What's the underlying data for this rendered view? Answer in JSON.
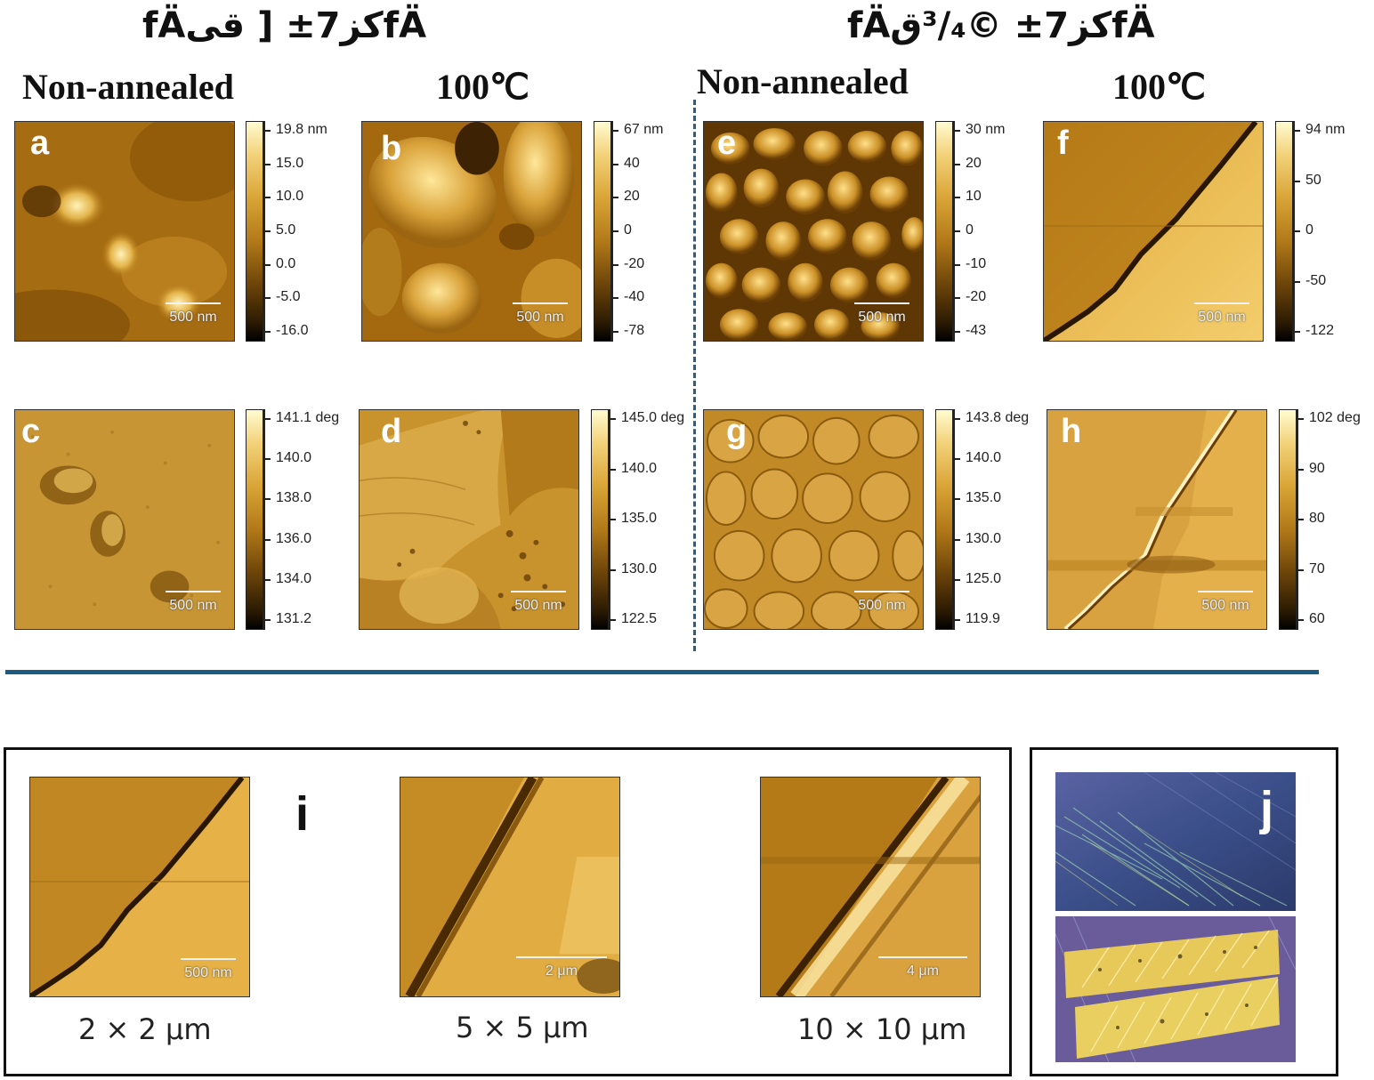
{
  "header": {
    "left_title": "fÄكز7±؜ [ قیfÄ",
    "right_title": "fÄكز7±؜ ©³/₄قfÄ"
  },
  "columns": {
    "col1": "Non-annealed",
    "col2": "100℃",
    "col3": "Non-annealed",
    "col4": "100℃"
  },
  "panels": {
    "a": {
      "label": "a",
      "scale": "500 nm"
    },
    "b": {
      "label": "b",
      "scale": "500 nm"
    },
    "c": {
      "label": "c",
      "scale": "500 nm"
    },
    "d": {
      "label": "d",
      "scale": "500 nm"
    },
    "e": {
      "label": "e",
      "scale": "500 nm"
    },
    "f": {
      "label": "f",
      "scale": "500 nm"
    },
    "g": {
      "label": "g",
      "scale": "500 nm"
    },
    "h": {
      "label": "h",
      "scale": "500 nm"
    },
    "i": {
      "label": "i"
    },
    "j": {
      "label": "j"
    }
  },
  "colorbars": {
    "a": [
      "19.8 nm",
      "15.0",
      "10.0",
      "5.0",
      "0.0",
      "-5.0",
      "-16.0"
    ],
    "b": [
      "67 nm",
      "40",
      "20",
      "0",
      "-20",
      "-40",
      "-78"
    ],
    "e": [
      "30 nm",
      "20",
      "10",
      "0",
      "-10",
      "-20",
      "-43"
    ],
    "f": [
      "94 nm",
      "50",
      "0",
      "-50",
      "-122"
    ],
    "c": [
      "141.1 deg",
      "140.0",
      "138.0",
      "136.0",
      "134.0",
      "131.2"
    ],
    "d": [
      "145.0 deg",
      "140.0",
      "135.0",
      "130.0",
      "122.5"
    ],
    "g": [
      "143.8 deg",
      "140.0",
      "135.0",
      "130.0",
      "125.0",
      "119.9"
    ],
    "h": [
      "102 deg",
      "90",
      "80",
      "70",
      "60"
    ]
  },
  "bottom": {
    "i_panels": [
      {
        "scale": "500 nm",
        "caption": "2 × 2 μm"
      },
      {
        "scale": "2 μm",
        "caption": "5 × 5 μm"
      },
      {
        "scale": "4 μm",
        "caption": "10 × 10 μm"
      }
    ]
  },
  "colors": {
    "divider": "#1d5c80",
    "afm_bright": "#f7d784",
    "afm_mid": "#c48d23",
    "afm_dark": "#3a2304"
  }
}
